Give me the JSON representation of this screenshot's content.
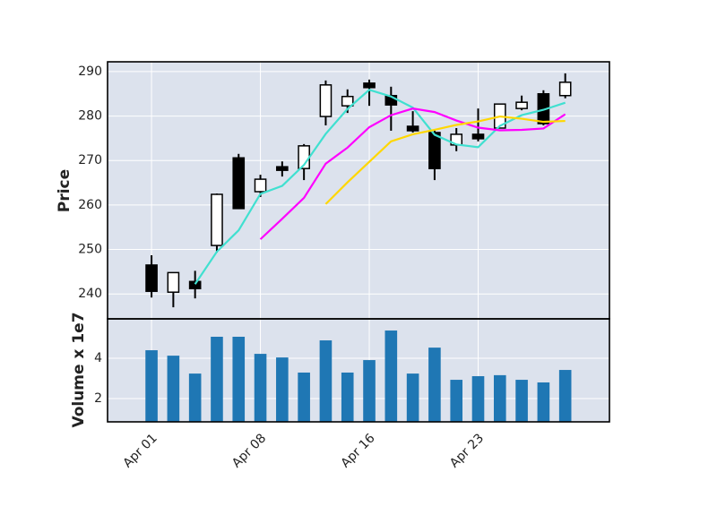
{
  "chart_data": {
    "type": "candlestick",
    "ylabel": "Price",
    "categories": [
      "Apr 01",
      null,
      null,
      null,
      null,
      "Apr 08",
      null,
      null,
      null,
      null,
      "Apr 16",
      null,
      null,
      null,
      null,
      "Apr 23",
      null,
      null,
      null,
      null
    ],
    "open": [
      246.5,
      240.4,
      242.8,
      250.9,
      270.6,
      263.0,
      268.6,
      268.2,
      279.9,
      282.3,
      287.4,
      284.6,
      277.7,
      276.3,
      273.5,
      275.9,
      277.3,
      281.7,
      285.0,
      284.6
    ],
    "high": [
      248.7,
      244.8,
      245.2,
      262.6,
      271.5,
      266.8,
      269.8,
      273.7,
      288.0,
      286.0,
      288.2,
      286.6,
      281.1,
      276.7,
      277.3,
      281.7,
      282.7,
      284.6,
      285.8,
      289.6
    ],
    "low": [
      239.2,
      237.0,
      239.0,
      249.3,
      259.2,
      261.8,
      266.4,
      265.6,
      277.9,
      280.7,
      282.3,
      276.7,
      276.3,
      265.6,
      272.1,
      274.3,
      277.3,
      281.3,
      277.9,
      284.0
    ],
    "close": [
      240.6,
      244.8,
      241.2,
      262.4,
      259.2,
      265.8,
      267.8,
      273.3,
      287.0,
      284.4,
      286.4,
      282.5,
      276.7,
      268.2,
      275.9,
      274.9,
      282.7,
      283.1,
      278.3,
      287.6
    ],
    "up_color": "#ffffff",
    "down_color": "#000000",
    "series": [
      {
        "color": "#40e0d0",
        "values": [
          null,
          null,
          242.2,
          249.5,
          254.3,
          262.5,
          264.3,
          269.0,
          276.0,
          281.6,
          285.9,
          284.4,
          281.9,
          275.8,
          273.6,
          273.0,
          277.8,
          280.2,
          281.4,
          283.0
        ]
      },
      {
        "color": "#ff00ff",
        "values": [
          null,
          null,
          null,
          null,
          null,
          252.3,
          256.9,
          261.6,
          269.3,
          272.9,
          277.5,
          280.2,
          281.7,
          280.9,
          279.0,
          277.4,
          276.8,
          276.9,
          277.2,
          280.4
        ]
      },
      {
        "color": "#ffd700",
        "values": [
          null,
          null,
          null,
          null,
          null,
          null,
          null,
          null,
          260.2,
          265.1,
          269.7,
          274.3,
          275.9,
          276.9,
          278.0,
          278.8,
          279.9,
          279.4,
          278.7,
          278.9
        ]
      }
    ],
    "xlim": [
      -2.02,
      21.03
    ],
    "ylim": [
      234.4,
      292.2
    ],
    "yticks": [
      240,
      250,
      260,
      270,
      280,
      290
    ],
    "grid": true,
    "volume": {
      "ylabel": "Volume x 1e7",
      "color": "#1f77b4",
      "values": [
        4.4,
        4.13,
        3.24,
        5.07,
        5.07,
        4.22,
        4.04,
        3.29,
        4.89,
        3.29,
        3.91,
        5.38,
        3.24,
        4.53,
        2.93,
        3.11,
        3.16,
        2.93,
        2.8,
        3.42
      ],
      "ylim": [
        0.84,
        5.96
      ],
      "yticks": [
        2,
        4
      ]
    }
  }
}
